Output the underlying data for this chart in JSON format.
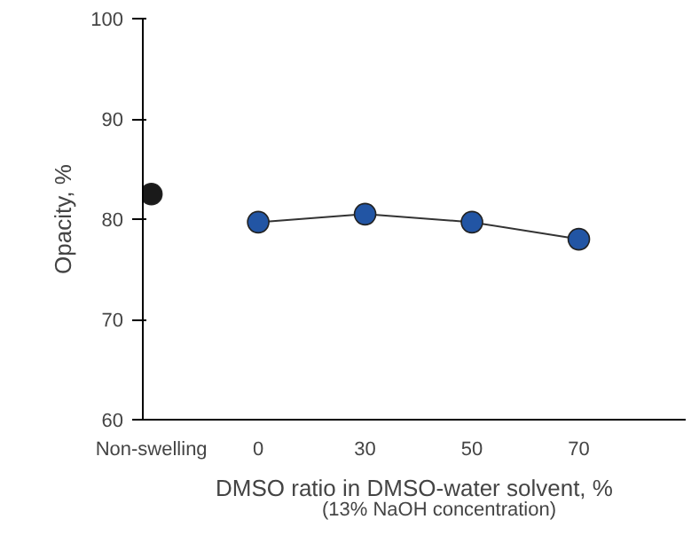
{
  "chart_data": {
    "type": "scatter",
    "categories": [
      "Non-swelling",
      "0",
      "30",
      "50",
      "70"
    ],
    "xlabel": "DMSO ratio in DMSO-water solvent, %",
    "ylabel": "Opacity, %",
    "annotations": [
      "(13% NaOH concentration)"
    ],
    "series": [
      {
        "color": "#1a1a1a",
        "x": [
          "Non-swelling"
        ],
        "values": [
          82.5
        ]
      },
      {
        "type": "line",
        "color": "#2255a4",
        "x": [
          "0",
          "30",
          "50",
          "70"
        ],
        "values": [
          79.7,
          80.5,
          79.7,
          78.0
        ]
      }
    ],
    "ylim": [
      60,
      100
    ],
    "yticks": [
      60,
      70,
      80,
      90,
      100
    ],
    "grid": false,
    "marker": "circle"
  }
}
